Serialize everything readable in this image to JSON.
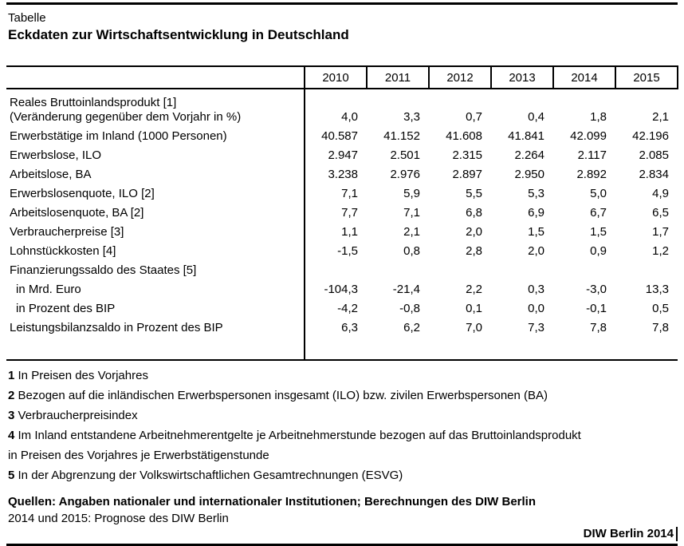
{
  "page": {
    "kicker": "Tabelle",
    "title": "Eckdaten zur Wirtschaftsentwicklung in Deutschland"
  },
  "table": {
    "years": [
      "2010",
      "2011",
      "2012",
      "2013",
      "2014",
      "2015"
    ],
    "rows": [
      {
        "label": "Reales Bruttoinlandsprodukt [1]",
        "label2": "(Veränderung gegenüber dem Vorjahr in %)",
        "values": [
          "4,0",
          "3,3",
          "0,7",
          "0,4",
          "1,8",
          "2,1"
        ]
      },
      {
        "label": "Erwerbstätige im Inland (1000 Personen)",
        "values": [
          "40.587",
          "41.152",
          "41.608",
          "41.841",
          "42.099",
          "42.196"
        ]
      },
      {
        "label": "Erwerbslose, ILO",
        "values": [
          "2.947",
          "2.501",
          "2.315",
          "2.264",
          "2.117",
          "2.085"
        ]
      },
      {
        "label": "Arbeitslose, BA",
        "values": [
          "3.238",
          "2.976",
          "2.897",
          "2.950",
          "2.892",
          "2.834"
        ]
      },
      {
        "label": "Erwerbslosenquote, ILO [2]",
        "values": [
          "7,1",
          "5,9",
          "5,5",
          "5,3",
          "5,0",
          "4,9"
        ]
      },
      {
        "label": "Arbeitslosenquote, BA [2]",
        "values": [
          "7,7",
          "7,1",
          "6,8",
          "6,9",
          "6,7",
          "6,5"
        ]
      },
      {
        "label": "Verbraucherpreise [3]",
        "values": [
          "1,1",
          "2,1",
          "2,0",
          "1,5",
          "1,5",
          "1,7"
        ]
      },
      {
        "label": "Lohnstückkosten [4]",
        "values": [
          "-1,5",
          "0,8",
          "2,8",
          "2,0",
          "0,9",
          "1,2"
        ]
      },
      {
        "label": "Finanzierungssaldo des Staates [5]",
        "values": [
          "",
          "",
          "",
          "",
          "",
          ""
        ]
      },
      {
        "label": "in Mrd. Euro",
        "indent": true,
        "values": [
          "-104,3",
          "-21,4",
          "2,2",
          "0,3",
          "-3,0",
          "13,3"
        ]
      },
      {
        "label": "in Prozent des BIP",
        "indent": true,
        "values": [
          "-4,2",
          "-0,8",
          "0,1",
          "0,0",
          "-0,1",
          "0,5"
        ]
      },
      {
        "label": "Leistungsbilanzsaldo in Prozent des BIP",
        "values": [
          "6,3",
          "6,2",
          "7,0",
          "7,3",
          "7,8",
          "7,8"
        ]
      }
    ]
  },
  "footnotes": [
    {
      "marker": "1",
      "text": "In Preisen des Vorjahres"
    },
    {
      "marker": "2",
      "text": "Bezogen auf die inländischen Erwerbspersonen insgesamt (ILO) bzw. zivilen Erwerbspersonen (BA)"
    },
    {
      "marker": "3",
      "text": "Verbraucherpreisindex"
    },
    {
      "marker": "4",
      "text": "Im Inland entstandene Arbeitnehmerentgelte je Arbeitnehmerstunde bezogen auf das Bruttoinlandsprodukt",
      "text2": "in Preisen des Vorjahres je Erwerbstätigenstunde"
    },
    {
      "marker": "5",
      "text": "In der Abgrenzung der Volkswirtschaftlichen Gesamtrechnungen (ESVG)"
    }
  ],
  "sources": {
    "line1": "Quellen: Angaben nationaler und internationaler Institutionen; Berechnungen des DIW Berlin",
    "line2": "2014 und 2015: Prognose des DIW Berlin",
    "credit": "DIW Berlin 2014"
  },
  "colors": {
    "text": "#000000",
    "background": "#ffffff",
    "rule": "#000000"
  }
}
